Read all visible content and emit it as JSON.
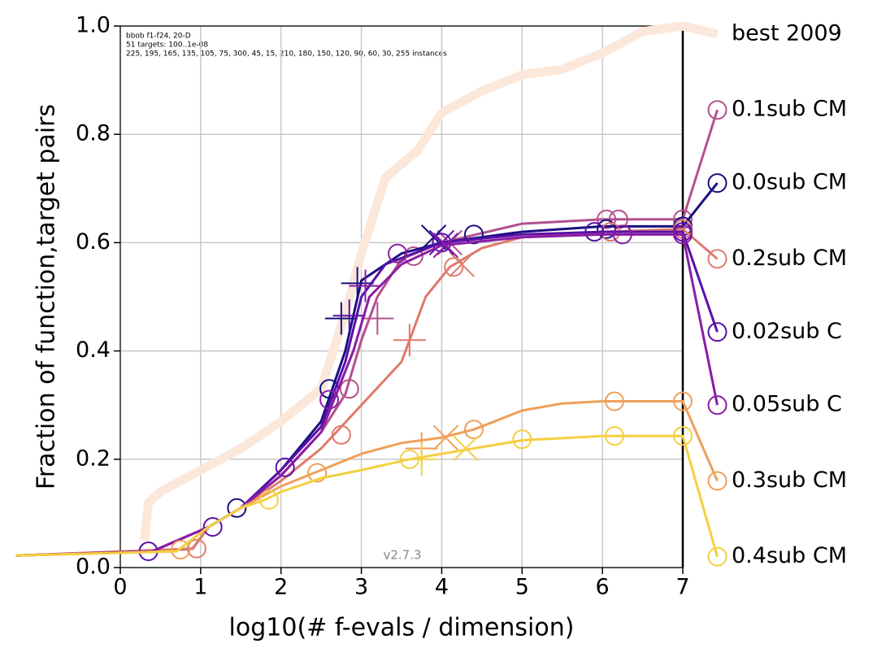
{
  "chart_data": {
    "type": "line",
    "title_lines": [
      "bbob f1-f24, 20-D",
      "51 targets: 100..1e-08",
      "225, 195, 165, 135, 105, 75, 300, 45, 15, 210, 180, 150, 120, 90, 60, 30, 255 instances"
    ],
    "watermark": "v2.7.3",
    "x_label": "log10(# f-evals / dimension)",
    "y_label": "Fraction of function,target pairs",
    "xlim": [
      0,
      7
    ],
    "ylim": [
      0,
      1
    ],
    "xticks": [
      0,
      1,
      2,
      3,
      4,
      5,
      6,
      7
    ],
    "yticks": [
      {
        "value": 0,
        "label": "0.0"
      },
      0.2,
      0.4,
      0.6,
      0.8,
      {
        "value": 1,
        "label": "1.0"
      }
    ],
    "grid": true,
    "series": [
      {
        "name": "best 2009",
        "color": "#fbe8da",
        "width": 11,
        "x": [
          0.3,
          0.35,
          0.5,
          1.0,
          1.5,
          2.0,
          2.5,
          2.8,
          3.0,
          3.3,
          3.7,
          4.0,
          4.5,
          5.0,
          5.5,
          6.0,
          6.5,
          7.0,
          7.43
        ],
        "values": [
          0.05,
          0.12,
          0.14,
          0.18,
          0.22,
          0.27,
          0.33,
          0.47,
          0.58,
          0.72,
          0.77,
          0.84,
          0.88,
          0.91,
          0.92,
          0.95,
          0.99,
          1.0,
          0.985
        ]
      },
      {
        "name": "0.1sub CM",
        "color": "#b4508e",
        "width": 3,
        "x": [
          -1.3,
          0.4,
          1.1,
          1.5,
          2.0,
          2.5,
          2.8,
          3.0,
          3.2,
          3.5,
          4.0,
          5.0,
          6.0,
          7.0,
          7.43
        ],
        "values": [
          0.022,
          0.03,
          0.075,
          0.11,
          0.17,
          0.25,
          0.32,
          0.42,
          0.5,
          0.57,
          0.6,
          0.635,
          0.643,
          0.643,
          0.845
        ],
        "markers": {
          "x": [
            2.85,
            3.65,
            6.05,
            6.2,
            7.0,
            7.43
          ],
          "values": [
            0.33,
            0.575,
            0.643,
            0.643,
            0.643,
            0.845
          ]
        },
        "plus": {
          "x": [
            3.2
          ],
          "values": [
            0.46
          ]
        },
        "cross": {
          "x": [
            4.1
          ],
          "values": [
            0.6
          ]
        }
      },
      {
        "name": "0.0sub CM",
        "color": "#1a1080",
        "width": 3,
        "x": [
          -1.3,
          0.4,
          0.9,
          1.1,
          1.5,
          2.0,
          2.5,
          2.8,
          3.0,
          3.5,
          4.0,
          5.0,
          6.0,
          7.0,
          7.43
        ],
        "values": [
          0.022,
          0.03,
          0.035,
          0.075,
          0.11,
          0.18,
          0.27,
          0.4,
          0.53,
          0.58,
          0.6,
          0.62,
          0.63,
          0.63,
          0.71
        ],
        "markers": {
          "x": [
            1.45,
            2.6,
            4.4,
            6.05,
            7.0,
            7.43
          ],
          "values": [
            0.11,
            0.33,
            0.615,
            0.625,
            0.63,
            0.71
          ]
        },
        "plus": {
          "x": [
            2.75,
            2.95
          ],
          "values": [
            0.46,
            0.525
          ]
        },
        "cross": {
          "x": [
            3.9
          ],
          "values": [
            0.61
          ]
        }
      },
      {
        "name": "0.2sub CM",
        "color": "#df7a6c",
        "width": 3,
        "x": [
          -1.3,
          0.9,
          1.1,
          1.5,
          2.0,
          2.5,
          3.0,
          3.5,
          3.8,
          4.1,
          4.5,
          5.0,
          6.0,
          7.0,
          7.43
        ],
        "values": [
          0.022,
          0.035,
          0.075,
          0.11,
          0.16,
          0.22,
          0.3,
          0.38,
          0.5,
          0.555,
          0.59,
          0.61,
          0.62,
          0.625,
          0.57
        ],
        "markers": {
          "x": [
            0.95,
            2.75,
            4.15,
            6.1,
            7.0,
            7.43
          ],
          "values": [
            0.035,
            0.245,
            0.555,
            0.62,
            0.625,
            0.57
          ]
        },
        "plus": {
          "x": [
            3.6
          ],
          "values": [
            0.42
          ]
        },
        "cross": {
          "x": [
            4.25
          ],
          "values": [
            0.56
          ]
        }
      },
      {
        "name": "0.02sub C",
        "color": "#5a10a8",
        "width": 3,
        "x": [
          -1.3,
          0.4,
          1.1,
          1.5,
          2.0,
          2.5,
          2.8,
          3.0,
          3.3,
          4.0,
          5.0,
          6.0,
          7.0,
          7.43
        ],
        "values": [
          0.022,
          0.03,
          0.075,
          0.11,
          0.18,
          0.26,
          0.38,
          0.5,
          0.56,
          0.6,
          0.615,
          0.62,
          0.62,
          0.435
        ],
        "markers": {
          "x": [
            0.35,
            1.15,
            2.05,
            4.0,
            5.9,
            7.0,
            7.43
          ],
          "values": [
            0.03,
            0.075,
            0.185,
            0.6,
            0.62,
            0.62,
            0.435
          ]
        },
        "plus": {
          "x": [
            2.85
          ],
          "values": [
            0.465
          ]
        },
        "cross": {
          "x": [
            4.0
          ],
          "values": [
            0.6
          ]
        }
      },
      {
        "name": "0.05sub C",
        "color": "#8a1ca5",
        "width": 3,
        "x": [
          -1.3,
          0.4,
          1.1,
          1.5,
          2.0,
          2.5,
          2.9,
          3.1,
          3.5,
          4.0,
          5.0,
          6.0,
          7.0,
          7.43
        ],
        "values": [
          0.022,
          0.03,
          0.075,
          0.11,
          0.17,
          0.25,
          0.4,
          0.5,
          0.56,
          0.595,
          0.61,
          0.615,
          0.615,
          0.3
        ],
        "markers": {
          "x": [
            2.6,
            3.45,
            6.25,
            7.0,
            7.43
          ],
          "values": [
            0.31,
            0.58,
            0.615,
            0.615,
            0.3
          ]
        },
        "plus": {
          "x": [
            3.05
          ],
          "values": [
            0.52
          ]
        },
        "cross": {
          "x": [
            4.05
          ],
          "values": [
            0.595
          ]
        }
      },
      {
        "name": "0.3sub CM",
        "color": "#ef9f5a",
        "width": 3,
        "x": [
          -1.3,
          0.7,
          1.1,
          1.5,
          2.0,
          2.5,
          3.0,
          3.5,
          4.0,
          4.4,
          5.0,
          5.5,
          6.0,
          7.0,
          7.43
        ],
        "values": [
          0.022,
          0.03,
          0.075,
          0.11,
          0.15,
          0.18,
          0.21,
          0.23,
          0.24,
          0.255,
          0.29,
          0.303,
          0.307,
          0.307,
          0.16
        ],
        "markers": {
          "x": [
            0.75,
            2.45,
            4.4,
            6.15,
            7.0,
            7.43
          ],
          "values": [
            0.033,
            0.175,
            0.255,
            0.307,
            0.307,
            0.16
          ]
        },
        "plus": {
          "x": [
            3.75
          ],
          "values": [
            0.22
          ]
        },
        "cross": {
          "x": [
            4.05
          ],
          "values": [
            0.24
          ]
        }
      },
      {
        "name": "0.4sub CM",
        "color": "#f4cf40",
        "width": 3,
        "x": [
          -1.3,
          0.7,
          1.1,
          1.5,
          1.8,
          2.0,
          2.5,
          3.0,
          3.6,
          4.0,
          5.0,
          6.0,
          7.0,
          7.43
        ],
        "values": [
          0.022,
          0.03,
          0.075,
          0.11,
          0.125,
          0.14,
          0.165,
          0.18,
          0.2,
          0.21,
          0.235,
          0.243,
          0.243,
          0.02
        ],
        "markers": {
          "x": [
            1.85,
            3.6,
            5.0,
            6.15,
            7.0,
            7.43
          ],
          "values": [
            0.125,
            0.2,
            0.237,
            0.243,
            0.243,
            0.02
          ]
        },
        "plus": {
          "x": [
            3.75
          ],
          "values": [
            0.2
          ]
        },
        "cross": {
          "x": [
            4.3
          ],
          "values": [
            0.22
          ]
        }
      }
    ]
  }
}
